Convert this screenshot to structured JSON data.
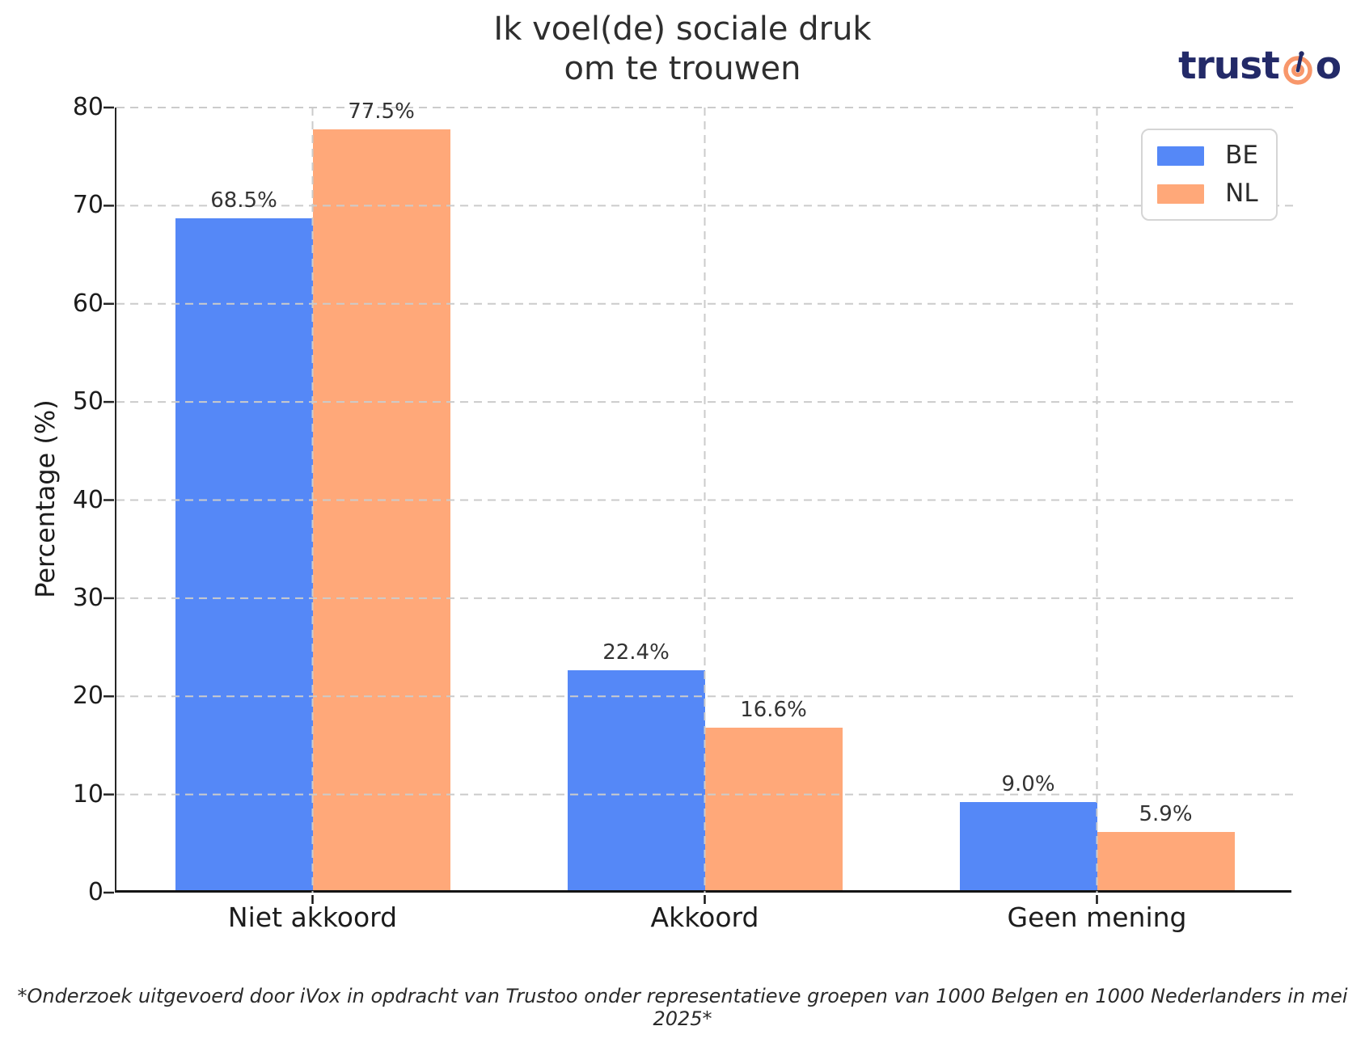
{
  "title": {
    "line1": "Ik voel(de) sociale druk",
    "line2": "om te trouwen"
  },
  "brand": {
    "prefix": "trust",
    "suffix": "o",
    "navy": "#232a68",
    "orange": "#F8976B"
  },
  "chart_data": {
    "type": "bar",
    "title": "Ik voel(de) sociale druk om te trouwen",
    "categories": [
      "Niet akkoord",
      "Akkoord",
      "Geen mening"
    ],
    "series": [
      {
        "name": "BE",
        "color": "#5588F7",
        "values": [
          68.5,
          22.4,
          9.0
        ]
      },
      {
        "name": "NL",
        "color": "#FFA879",
        "values": [
          77.5,
          16.6,
          5.9
        ]
      }
    ],
    "value_labels": [
      [
        "68.5%",
        "22.4%",
        "9.0%"
      ],
      [
        "77.5%",
        "16.6%",
        "5.9%"
      ]
    ],
    "xlabel": "",
    "ylabel": "Percentage (%)",
    "ylim": [
      0,
      80
    ],
    "yticks": [
      0,
      10,
      20,
      30,
      40,
      50,
      60,
      70,
      80
    ],
    "grid": {
      "style": "dashed",
      "color": "#cbcbcb",
      "horizontal": true,
      "vertical": true
    },
    "legend": {
      "position": "top-right",
      "entries": [
        "BE",
        "NL"
      ]
    }
  },
  "footer": {
    "note": "*Onderzoek uitgevoerd door iVox in opdracht van Trustoo onder representatieve groepen van 1000 Belgen en 1000 Nederlanders in mei 2025*"
  }
}
